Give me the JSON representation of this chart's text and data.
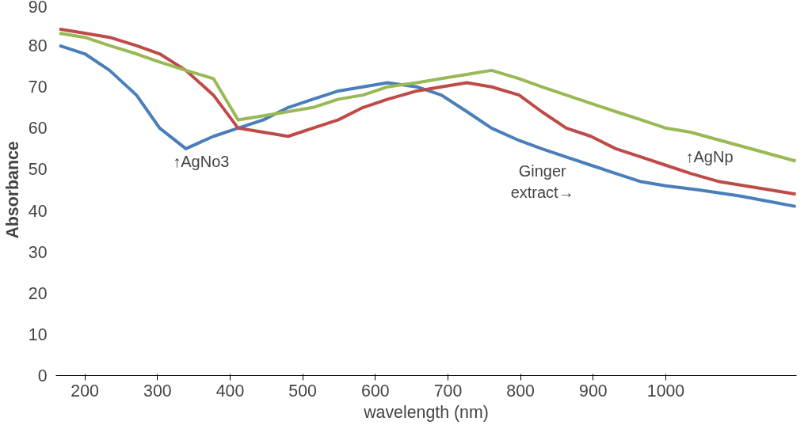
{
  "chart_data": {
    "type": "line",
    "xlabel": "wavelength (nm)",
    "ylabel": "Absorbance",
    "xlim": [
      160,
      1180
    ],
    "xticks": [
      200,
      300,
      400,
      500,
      600,
      700,
      800,
      900,
      1000
    ],
    "ylim": [
      0,
      90
    ],
    "yticks": [
      0,
      10,
      20,
      30,
      40,
      50,
      60,
      70,
      80,
      90
    ],
    "grid": false,
    "series": [
      {
        "color": "#4a7ebb",
        "x": [
          165,
          200,
          234,
          271,
          303,
          339,
          377,
          411,
          446,
          480,
          514,
          549,
          583,
          617,
          657,
          691,
          726,
          760,
          798,
          829,
          863,
          897,
          931,
          966,
          1000,
          1046,
          1103,
          1179
        ],
        "values": [
          80,
          78,
          74,
          68,
          60,
          55,
          58,
          60,
          62,
          65,
          67,
          69,
          70,
          71,
          70,
          68,
          64,
          60,
          57,
          55,
          53,
          51,
          49,
          47,
          46,
          45,
          43.5,
          41
        ]
      },
      {
        "color": "#be4b48",
        "x": [
          165,
          200,
          234,
          271,
          303,
          339,
          377,
          411,
          480,
          514,
          549,
          583,
          617,
          657,
          691,
          726,
          760,
          798,
          829,
          863,
          897,
          931,
          966,
          1000,
          1034,
          1074,
          1179
        ],
        "values": [
          84,
          83,
          82,
          80,
          78,
          74,
          68,
          60,
          58,
          60,
          62,
          65,
          67,
          69,
          70,
          71,
          70,
          68,
          64,
          60,
          58,
          55,
          53,
          51,
          49,
          47,
          44
        ]
      },
      {
        "color": "#98b954",
        "x": [
          165,
          200,
          234,
          271,
          303,
          339,
          377,
          411,
          446,
          480,
          514,
          549,
          583,
          617,
          657,
          691,
          726,
          760,
          798,
          829,
          863,
          897,
          931,
          966,
          1000,
          1034,
          1179
        ],
        "values": [
          83,
          82,
          80,
          78,
          76,
          74,
          72,
          62,
          63,
          64,
          65,
          67,
          68,
          70,
          71,
          72,
          73,
          74,
          72,
          70,
          68,
          66,
          64,
          62,
          60,
          59,
          52
        ]
      }
    ],
    "annotations": [
      "↑AgNo3",
      "Ginger extract→",
      "↑AgNp"
    ]
  }
}
